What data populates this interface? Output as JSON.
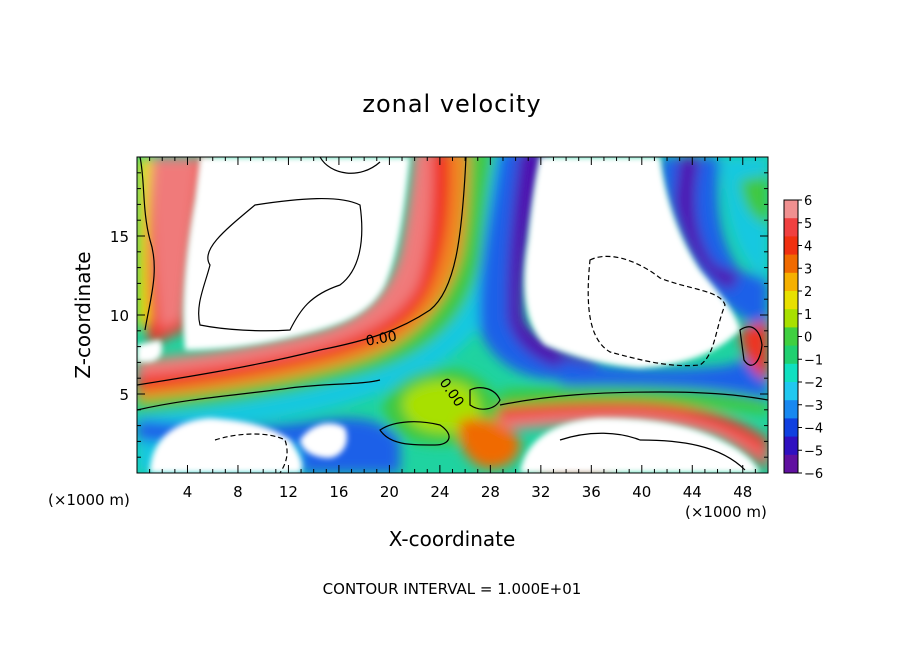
{
  "chart_data": {
    "type": "heatmap",
    "title": "zonal velocity",
    "xlabel": "X-coordinate",
    "ylabel": "Z-coordinate",
    "x_unit_left": "(×1000 m)",
    "x_unit_right": "(×1000 m)",
    "xlim": [
      0,
      50
    ],
    "ylim": [
      0,
      20
    ],
    "x_ticks": [
      4,
      8,
      12,
      16,
      20,
      24,
      28,
      32,
      36,
      40,
      44,
      48
    ],
    "y_ticks": [
      5,
      10,
      15
    ],
    "colorbar": {
      "min": -6,
      "max": 6,
      "ticks": [
        "6",
        "5",
        "4",
        "3",
        "2",
        "1",
        "0",
        "−1",
        "−2",
        "−3",
        "−4",
        "−5",
        "−6"
      ],
      "colors": [
        "#f09090",
        "#f04040",
        "#f03010",
        "#f06a00",
        "#f5b000",
        "#e8e000",
        "#a8e000",
        "#40d040",
        "#20d070",
        "#10e0c0",
        "#20c8f0",
        "#1888f0",
        "#1040e0",
        "#3010c0",
        "#6010a0"
      ]
    },
    "contour_labels": [
      "0.00",
      "0.00"
    ],
    "annotation": "CONTOUR INTERVAL = 1.000E+01",
    "grid": false
  }
}
